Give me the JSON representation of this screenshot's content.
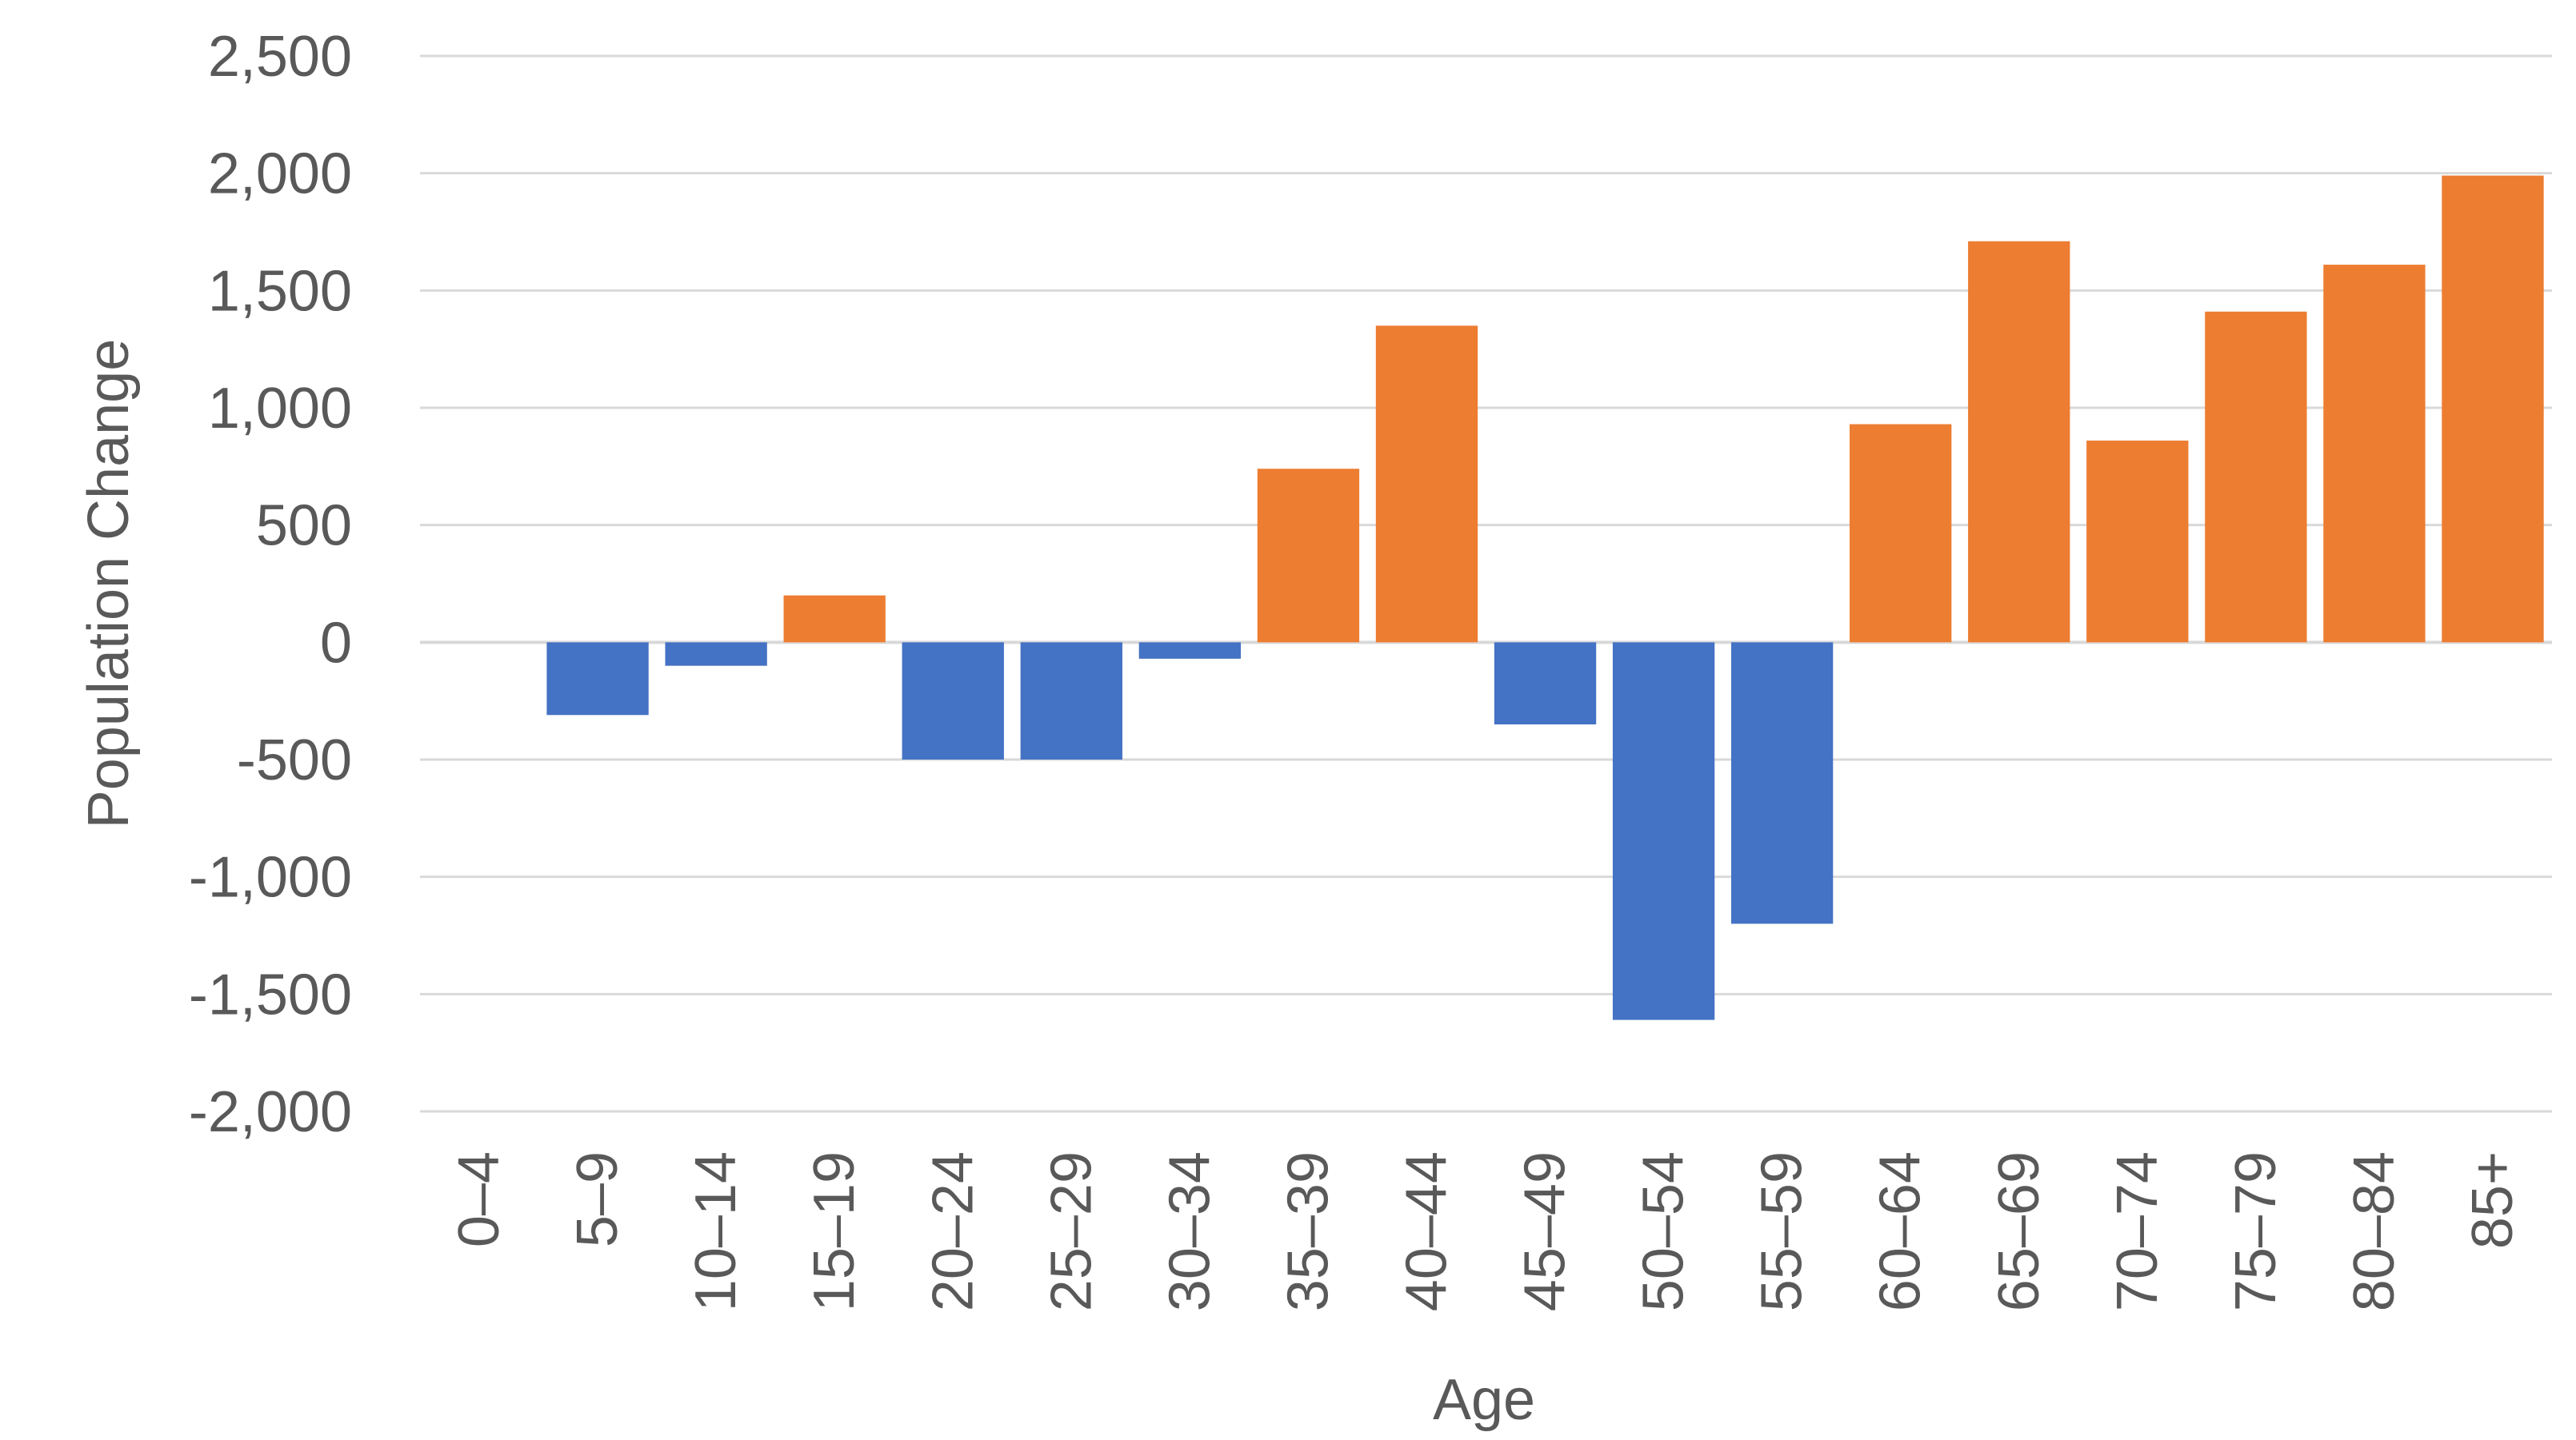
{
  "chart_data": {
    "type": "bar",
    "title": "",
    "xlabel": "Age",
    "ylabel": "Population Change",
    "categories": [
      "0–4",
      "5–9",
      "10–14",
      "15–19",
      "20–24",
      "25–29",
      "30–34",
      "35–39",
      "40–44",
      "45–49",
      "50–54",
      "55–59",
      "60–64",
      "65–69",
      "70–74",
      "75–79",
      "80–84",
      "85+"
    ],
    "values": [
      0,
      -310,
      -100,
      200,
      -500,
      -500,
      -70,
      740,
      1350,
      -350,
      -1610,
      -1200,
      930,
      1710,
      860,
      1410,
      1610,
      1990
    ],
    "ylim": [
      -2000,
      2500
    ],
    "yticks": [
      2500,
      2000,
      1500,
      1000,
      500,
      0,
      -500,
      -1000,
      -1500,
      -2000
    ],
    "ytick_labels": [
      "2,500",
      "2,000",
      "1,500",
      "1,000",
      "500",
      "0",
      "-500",
      "-1,000",
      "-1,500",
      "-2,000"
    ],
    "grid": true,
    "legend": "none",
    "colors": {
      "positive": "#ED7D31",
      "negative": "#4472C4",
      "grid": "#D9D9D9",
      "text": "#595959"
    }
  }
}
